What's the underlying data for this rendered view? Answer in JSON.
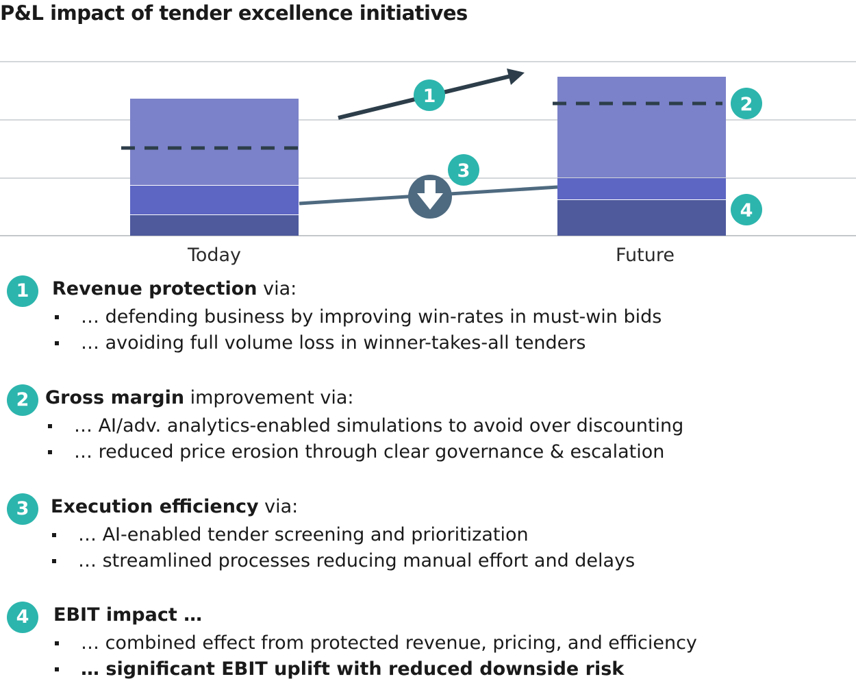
{
  "title": "P&L impact of tender excellence initiatives",
  "chart_data": {
    "type": "bar",
    "categories": [
      "Today",
      "Future"
    ],
    "markers": [
      "1",
      "2",
      "3",
      "4"
    ]
  },
  "colors": {
    "accent": "#2cb5ad",
    "bar_top": "#7b82c9",
    "bar_mid": "#5d66c3",
    "bar_bottom": "#4e5a9c",
    "dark_line": "#2d3e4a",
    "connector": "#4e6a80"
  },
  "items": [
    {
      "number": "1",
      "bold": "Revenue protection",
      "rest": " via:",
      "bullets": [
        "… defending business by improving win-rates in must-win bids",
        "… avoiding full volume loss in winner-takes-all tenders"
      ]
    },
    {
      "number": "2",
      "bold": "Gross margin",
      "rest": " improvement via:",
      "bullets": [
        "… AI/adv. analytics-enabled simulations to avoid over discounting",
        "… reduced price erosion through clear governance & escalation"
      ]
    },
    {
      "number": "3",
      "bold": "Execution efficiency",
      "rest": " via:",
      "bullets": [
        "… AI-enabled tender screening and prioritization",
        "… streamlined processes reducing manual effort and delays"
      ]
    },
    {
      "number": "4",
      "bold": "EBIT impact …",
      "rest": "",
      "bullets": [
        "… combined effect from protected revenue, pricing, and efficiency",
        "… significant EBIT uplift with reduced downside risk"
      ]
    }
  ]
}
